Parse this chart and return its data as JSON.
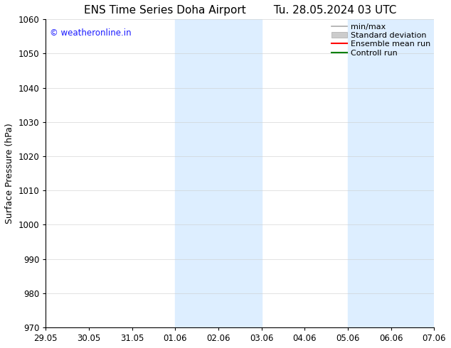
{
  "title_left": "ENS Time Series Doha Airport",
  "title_right": "Tu. 28.05.2024 03 UTC",
  "ylabel": "Surface Pressure (hPa)",
  "ylim": [
    970,
    1060
  ],
  "yticks": [
    970,
    980,
    990,
    1000,
    1010,
    1020,
    1030,
    1040,
    1050,
    1060
  ],
  "xtick_labels": [
    "29.05",
    "30.05",
    "31.05",
    "01.06",
    "02.06",
    "03.06",
    "04.06",
    "05.06",
    "06.06",
    "07.06"
  ],
  "xtick_positions": [
    0,
    1,
    2,
    3,
    4,
    5,
    6,
    7,
    8,
    9
  ],
  "shaded_bands": [
    {
      "x_start": 3,
      "x_end": 5
    },
    {
      "x_start": 7,
      "x_end": 9
    }
  ],
  "shade_color": "#ddeeff",
  "background_color": "#ffffff",
  "watermark_text": "© weatheronline.in",
  "watermark_color": "#1a1aff",
  "legend_labels": [
    "min/max",
    "Standard deviation",
    "Ensemble mean run",
    "Controll run"
  ],
  "legend_colors": [
    "#aaaaaa",
    "#cccccc",
    "red",
    "green"
  ],
  "grid_color": "#cccccc",
  "title_fontsize": 11,
  "tick_label_fontsize": 8.5,
  "ylabel_fontsize": 9
}
